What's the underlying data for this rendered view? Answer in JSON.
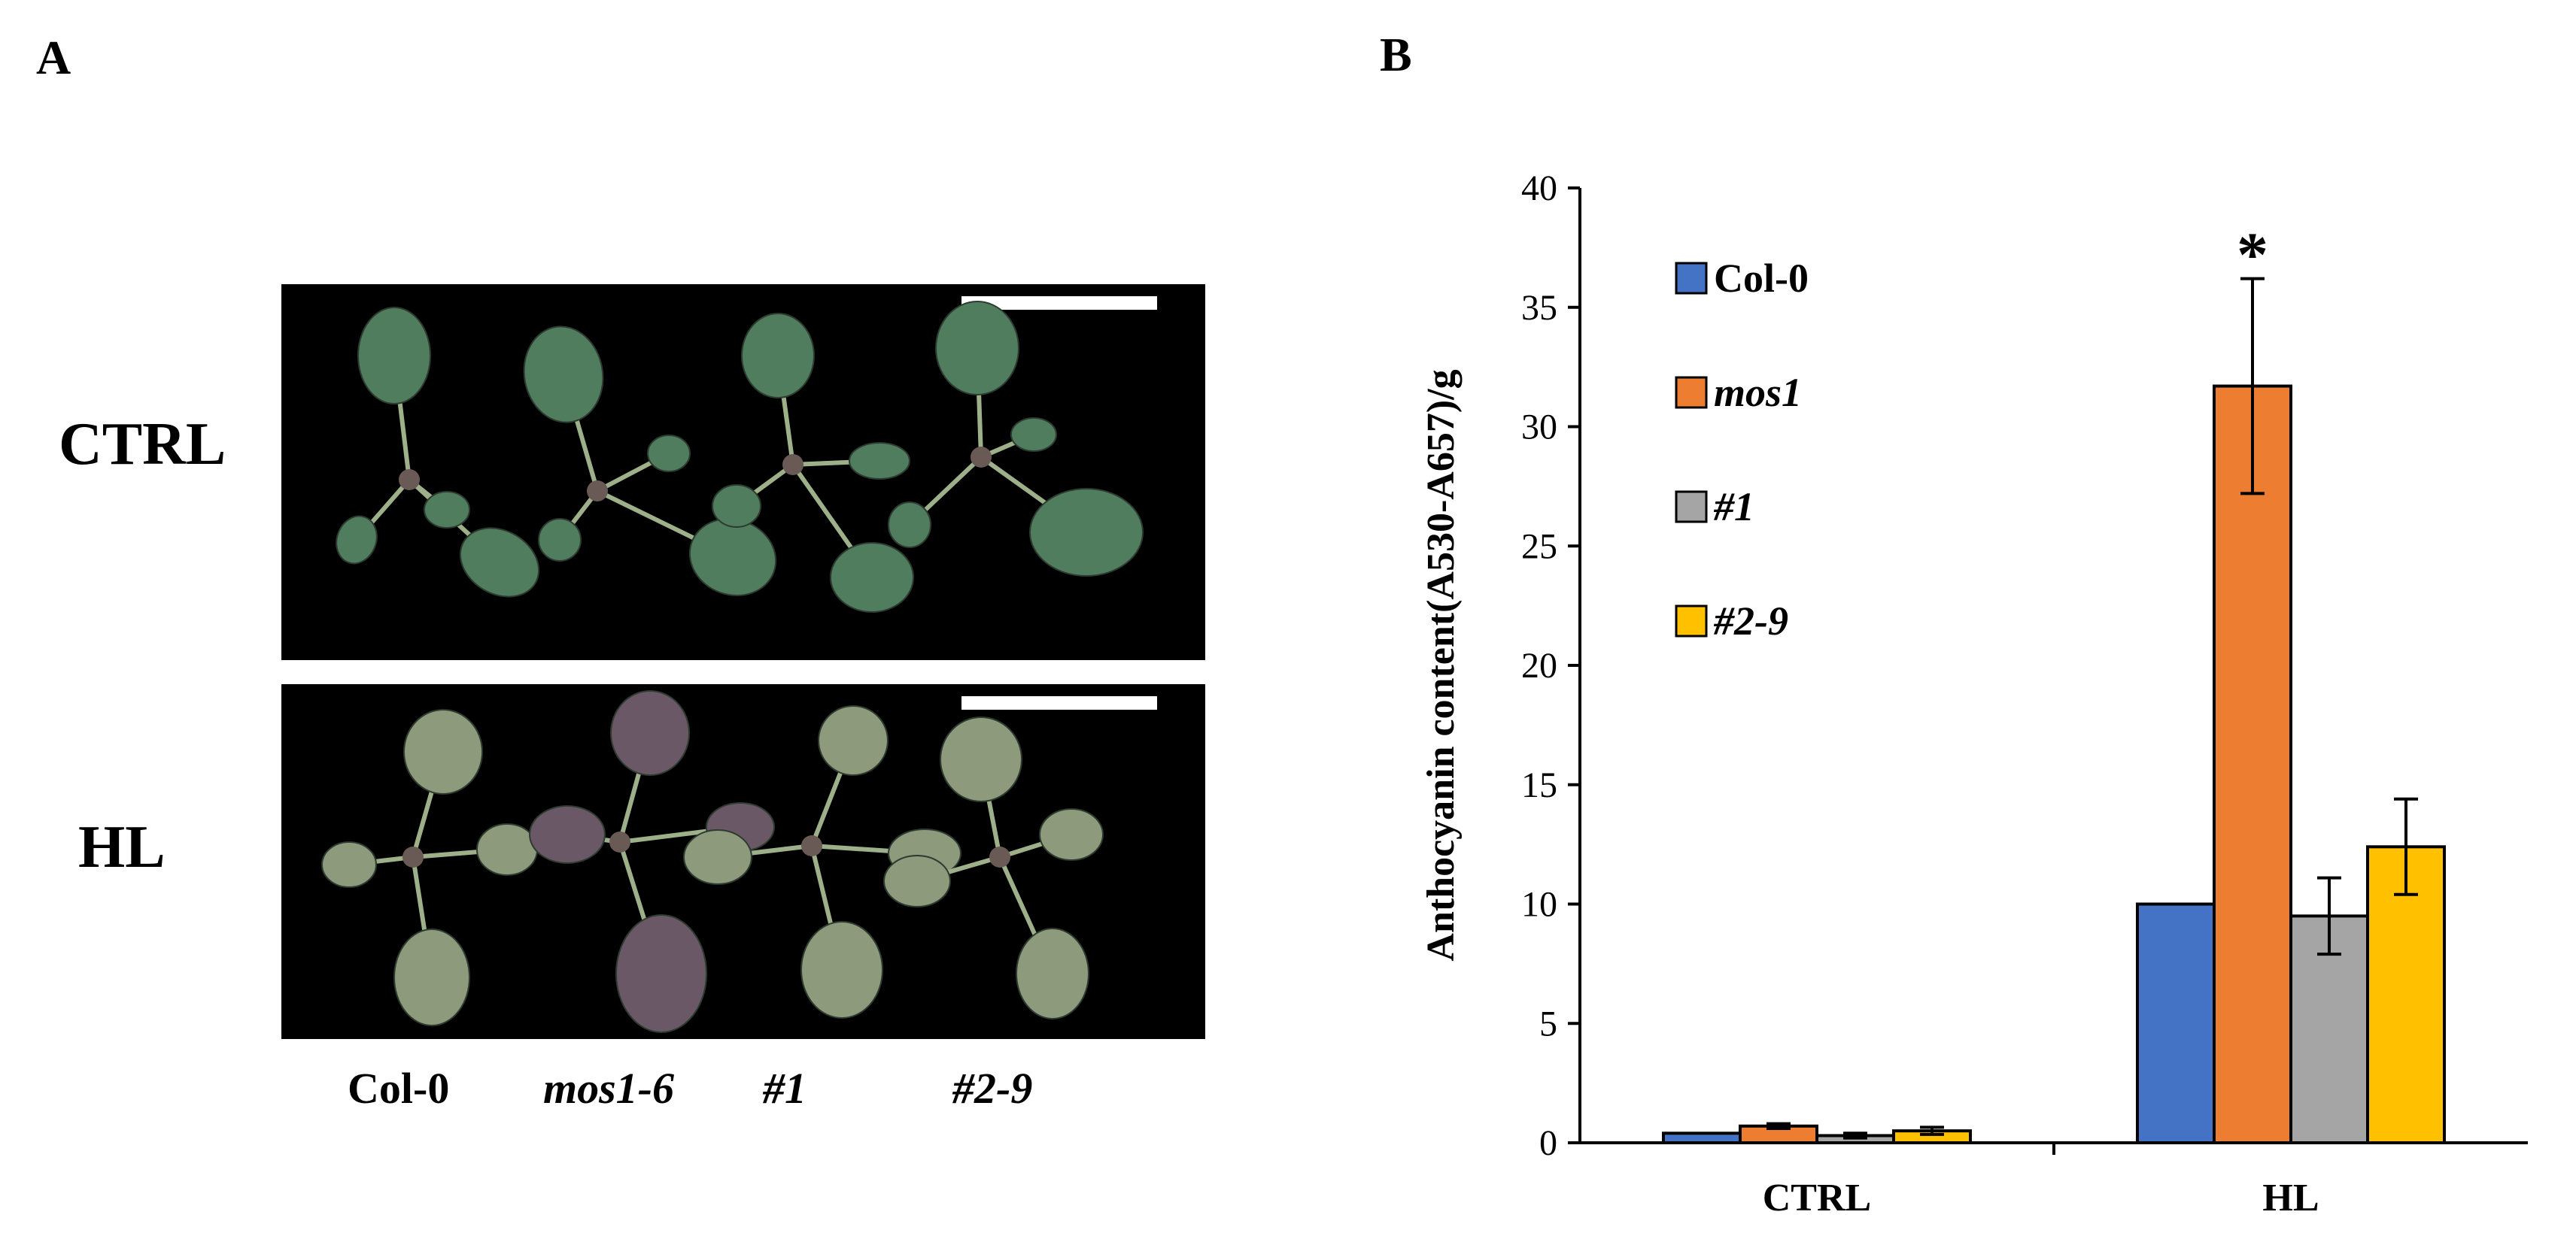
{
  "panel_a": {
    "letter": "A",
    "row_labels": [
      "CTRL",
      "HL"
    ],
    "genotype_labels": [
      "Col-0",
      "mos1-6",
      "#1",
      "#2-9"
    ]
  },
  "panel_b": {
    "letter": "B"
  },
  "colors": {
    "Col-0": "#4472c4",
    "mos1": "#ed7d31",
    "#1": "#a5a5a5",
    "#2-9": "#ffc000",
    "leaf_ctrl": "#4f7d5e",
    "leaf_hl": "#8d9a7c",
    "leaf_hl_purple": "#6b5866"
  },
  "chart_data": {
    "type": "bar",
    "title": "",
    "xlabel": "",
    "ylabel": "Anthocyanin content(A530-A657)/g",
    "ylim": [
      0,
      40
    ],
    "yticks": [
      0,
      5,
      10,
      15,
      20,
      25,
      30,
      35,
      40
    ],
    "categories": [
      "CTRL",
      "HL"
    ],
    "series": [
      {
        "name": "Col-0",
        "values": [
          0.4,
          10.0
        ],
        "errors": [
          0.05,
          0.05
        ]
      },
      {
        "name": "mos1",
        "values": [
          0.7,
          31.7
        ],
        "errors": [
          0.1,
          4.5
        ]
      },
      {
        "name": "#1",
        "values": [
          0.3,
          9.5
        ],
        "errors": [
          0.1,
          1.6
        ]
      },
      {
        "name": "#2-9",
        "values": [
          0.5,
          12.4
        ],
        "errors": [
          0.15,
          2.0
        ]
      }
    ],
    "annotations": [
      {
        "text": "*",
        "category": "HL",
        "series": "mos1"
      }
    ],
    "legend": "top-left",
    "grid": false
  }
}
